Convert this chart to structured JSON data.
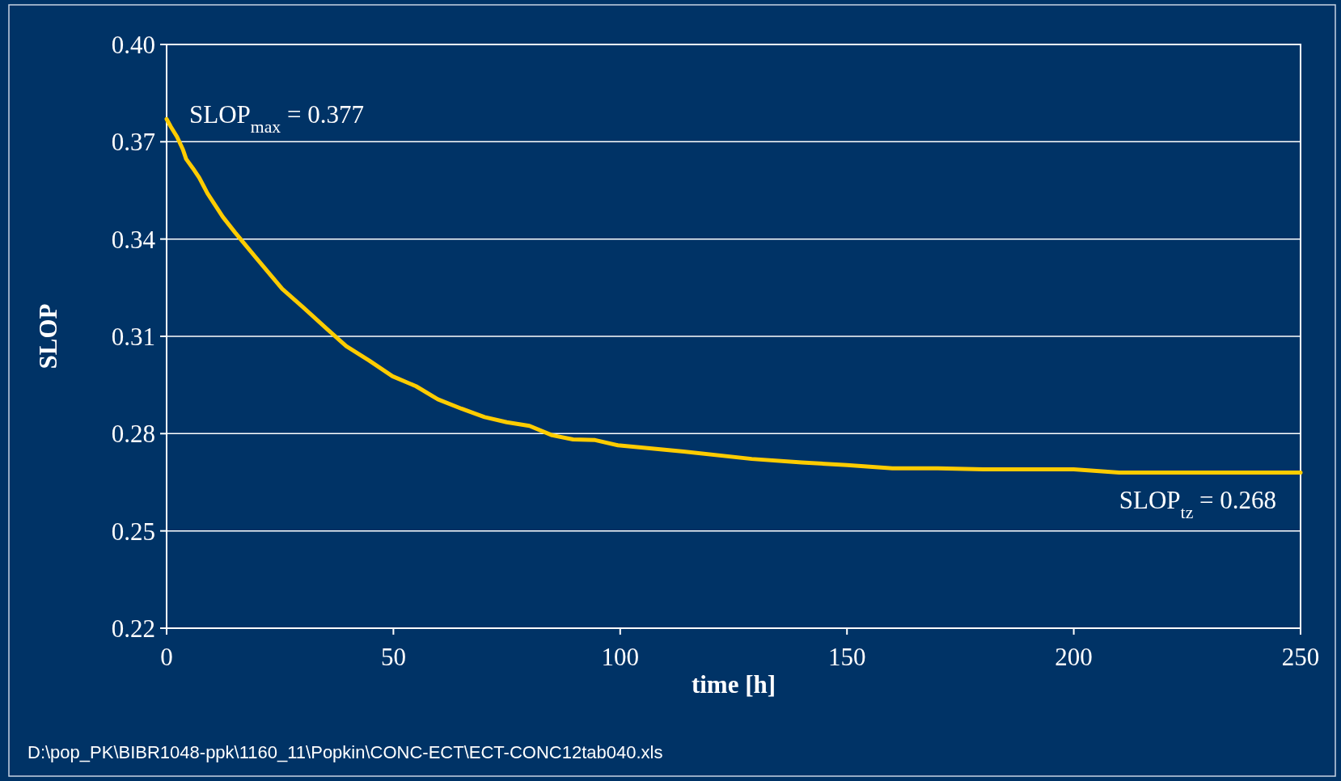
{
  "chart_data": {
    "type": "line",
    "xlabel": "time [h]",
    "ylabel": "SLOP",
    "xlim": [
      0,
      250
    ],
    "xticks": [
      0,
      50,
      100,
      150,
      200,
      250
    ],
    "ylim": [
      0.22,
      0.4
    ],
    "yticks": [
      0.22,
      0.25,
      0.28,
      0.31,
      0.34,
      0.37,
      {
        "value": 0.4,
        "label": "0.40"
      }
    ],
    "grid": "y",
    "marker": "none",
    "line_style": "solid",
    "series": [
      {
        "color": "#ffcc00",
        "x": [
          0,
          0.9,
          2.3,
          3.6,
          4.3,
          5.8,
          7.2,
          9,
          12.4,
          15.1,
          19.8,
          25.5,
          30.2,
          35.4,
          39.6,
          44.7,
          49.8,
          55,
          59.8,
          65,
          70.1,
          75,
          80,
          85,
          89.6,
          94.5,
          99.5,
          114,
          129,
          140,
          150,
          160,
          170,
          180,
          200,
          210,
          250
        ],
        "values": [
          0.377,
          0.3747,
          0.3715,
          0.3676,
          0.3647,
          0.3618,
          0.3589,
          0.3541,
          0.3468,
          0.342,
          0.3341,
          0.3246,
          0.3188,
          0.3122,
          0.307,
          0.3025,
          0.2977,
          0.2946,
          0.2906,
          0.2877,
          0.2851,
          0.2835,
          0.2824,
          0.2795,
          0.2782,
          0.278,
          0.2764,
          0.2745,
          0.2722,
          0.2711,
          0.2703,
          0.2693,
          0.2693,
          0.269,
          0.269,
          0.268,
          0.268
        ]
      }
    ],
    "annotations": [
      {
        "text": "SLOP$_{max}$ = 0.377",
        "x": 0,
        "y": 0.377
      },
      {
        "text": "SLOP$_{tz}$ = 0.268",
        "x": 250,
        "y": 0.268
      },
      "D:\\pop_PK\\BIBR1048-ppk\\1160_11\\Popkin\\CONC-ECT\\ECT-CONC12tab040.xls"
    ]
  }
}
